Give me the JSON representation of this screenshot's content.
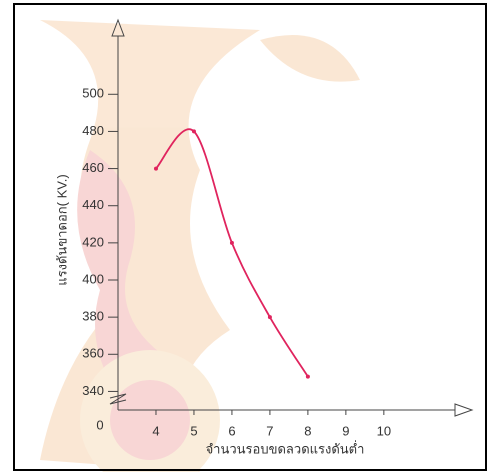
{
  "chart_data": {
    "type": "line",
    "x_label": "จำนวนรอบขดลวดแรงดันต่ำ",
    "y_label": "แรงดันขาดอก( KV.)",
    "origin_label": "0",
    "x": [
      4,
      5,
      6,
      7,
      8
    ],
    "series": [
      {
        "color": "#e0245e",
        "values": [
          460,
          480,
          420,
          380,
          348
        ]
      }
    ],
    "xlim": [
      3,
      11.9
    ],
    "xticks": [
      4,
      5,
      6,
      7,
      8,
      9,
      10
    ],
    "ylim": [
      330,
      540
    ],
    "yticks": [
      340,
      360,
      380,
      400,
      420,
      440,
      460,
      480,
      500
    ],
    "smooth": true
  }
}
